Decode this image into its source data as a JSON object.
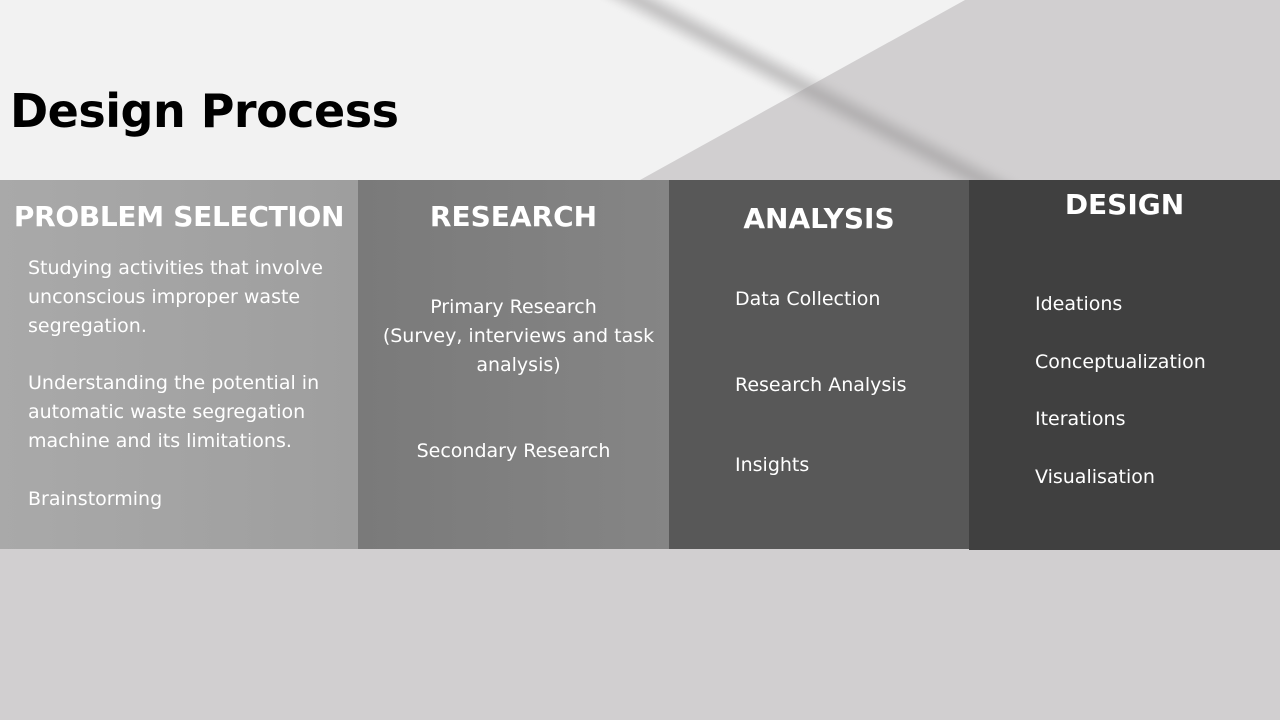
{
  "title": "Design Process",
  "columns": [
    {
      "heading": "PROBLEM SELECTION",
      "items": [
        "Studying activities that involve unconscious improper waste segregation.",
        "Understanding the potential in automatic waste segregation machine and its limitations.",
        "Brainstorming"
      ]
    },
    {
      "heading": "RESEARCH",
      "items": [
        "Primary Research",
        "(Survey, interviews and task analysis)",
        "Secondary Research"
      ]
    },
    {
      "heading": "ANALYSIS",
      "items": [
        "Data Collection",
        "Research Analysis",
        "Insights"
      ]
    },
    {
      "heading": "DESIGN",
      "items": [
        "Ideations",
        "Conceptualization",
        "Iterations",
        "Visualisation"
      ]
    }
  ],
  "colors": {
    "background": "#d1cfd0",
    "header_light": "#f2f2f2",
    "col_problem": "#a5a5a5",
    "col_research": "#7f7f7f",
    "col_analysis": "#585858",
    "col_design": "#404040",
    "text": "#ffffff"
  }
}
